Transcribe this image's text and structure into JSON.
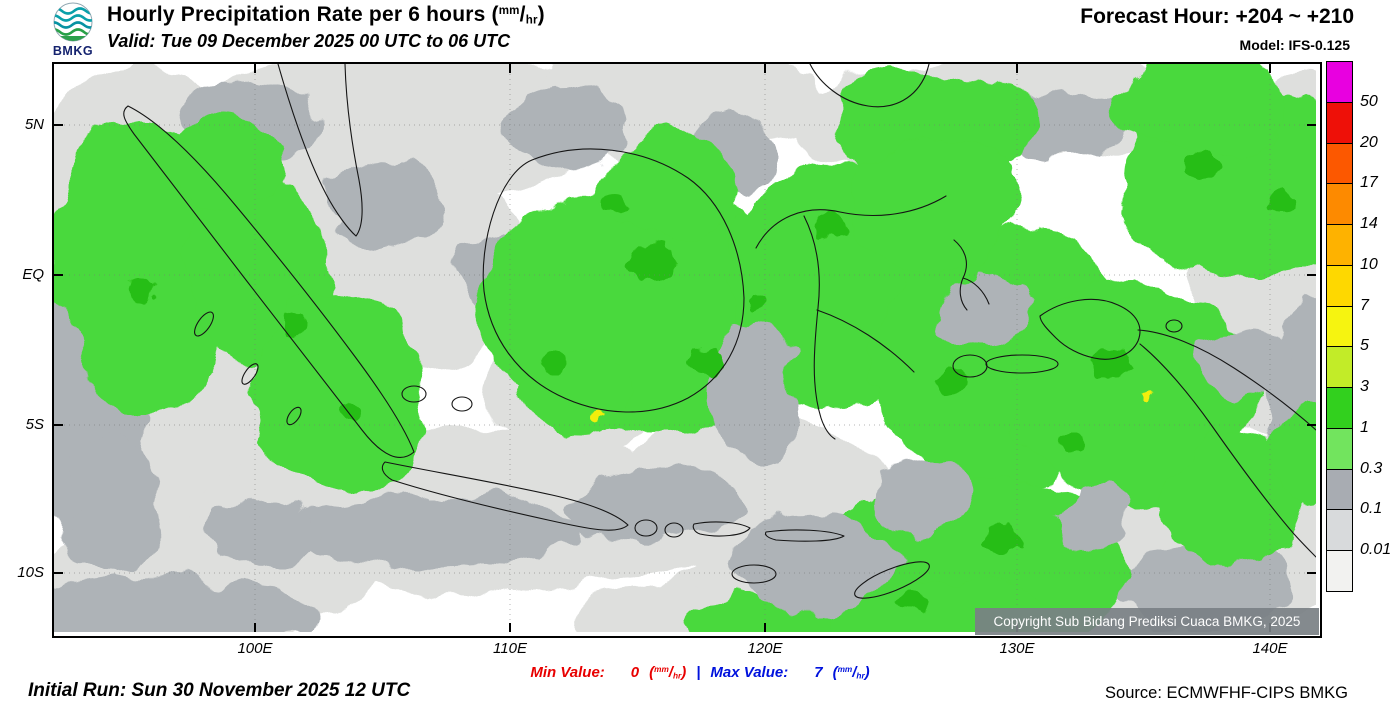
{
  "header": {
    "logo_text": "BMKG",
    "title_prefix": "Hourly Precipitation Rate per 6 hours (",
    "title_suffix": ")",
    "valid_line": "Valid: Tue 09 December 2025 00 UTC to 06 UTC",
    "forecast_hour": "Forecast Hour: +204 ~ +210",
    "model": "Model: IFS-0.125"
  },
  "units": {
    "num": "mm",
    "slash": "/",
    "den": "hr",
    "open": "(",
    "close": ")"
  },
  "map": {
    "lat_labels": [
      "5N",
      "EQ",
      "5S",
      "10S"
    ],
    "lon_labels": [
      "100E",
      "110E",
      "120E",
      "130E",
      "140E"
    ],
    "copyright": "Copyright Sub Bidang Prediksi Cuaca BMKG, 2025"
  },
  "legend": {
    "labels": [
      "50",
      "20",
      "17",
      "14",
      "10",
      "7",
      "5",
      "3",
      "1",
      "0.3",
      "0.1",
      "0.01"
    ],
    "colors": [
      "#e800e0",
      "#ee1008",
      "#fc5800",
      "#fd8a00",
      "#feb200",
      "#fed800",
      "#f6f410",
      "#c2ec28",
      "#32d01e",
      "#72e45e",
      "#a8acb2",
      "#d8dadc",
      "#f2f2f0"
    ],
    "map_colors": {
      "light_gray": "#dedfdd",
      "gray": "#aeb3b7",
      "green": "#4ad93c",
      "dark_green": "#28be14",
      "yellow": "#f2ee10"
    }
  },
  "footer": {
    "min_label": "Min Value:",
    "min_value": "0",
    "separator": "|",
    "max_label": "Max Value:",
    "max_value": "7",
    "initial_run": "Initial Run: Sun 30 November 2025 12 UTC",
    "source": "Source: ECMWFHF-CIPS BMKG"
  }
}
